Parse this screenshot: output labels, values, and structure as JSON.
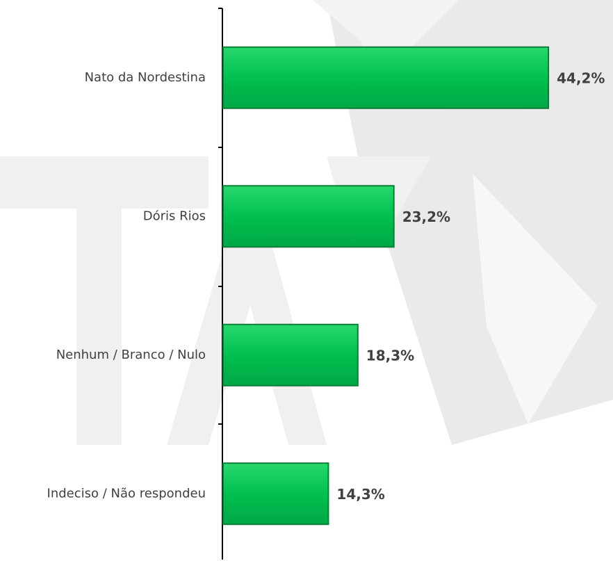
{
  "chart_data": {
    "type": "bar",
    "orientation": "horizontal",
    "categories": [
      "Nato da Nordestina",
      "Dóris Rios",
      "Nenhum / Branco / Nulo",
      "Indeciso / Não respondeu"
    ],
    "values": [
      44.2,
      23.2,
      18.3,
      14.3
    ],
    "value_labels": [
      "44,2%",
      "23,2%",
      "18,3%",
      "14,3%"
    ],
    "color": "#00c050"
  }
}
